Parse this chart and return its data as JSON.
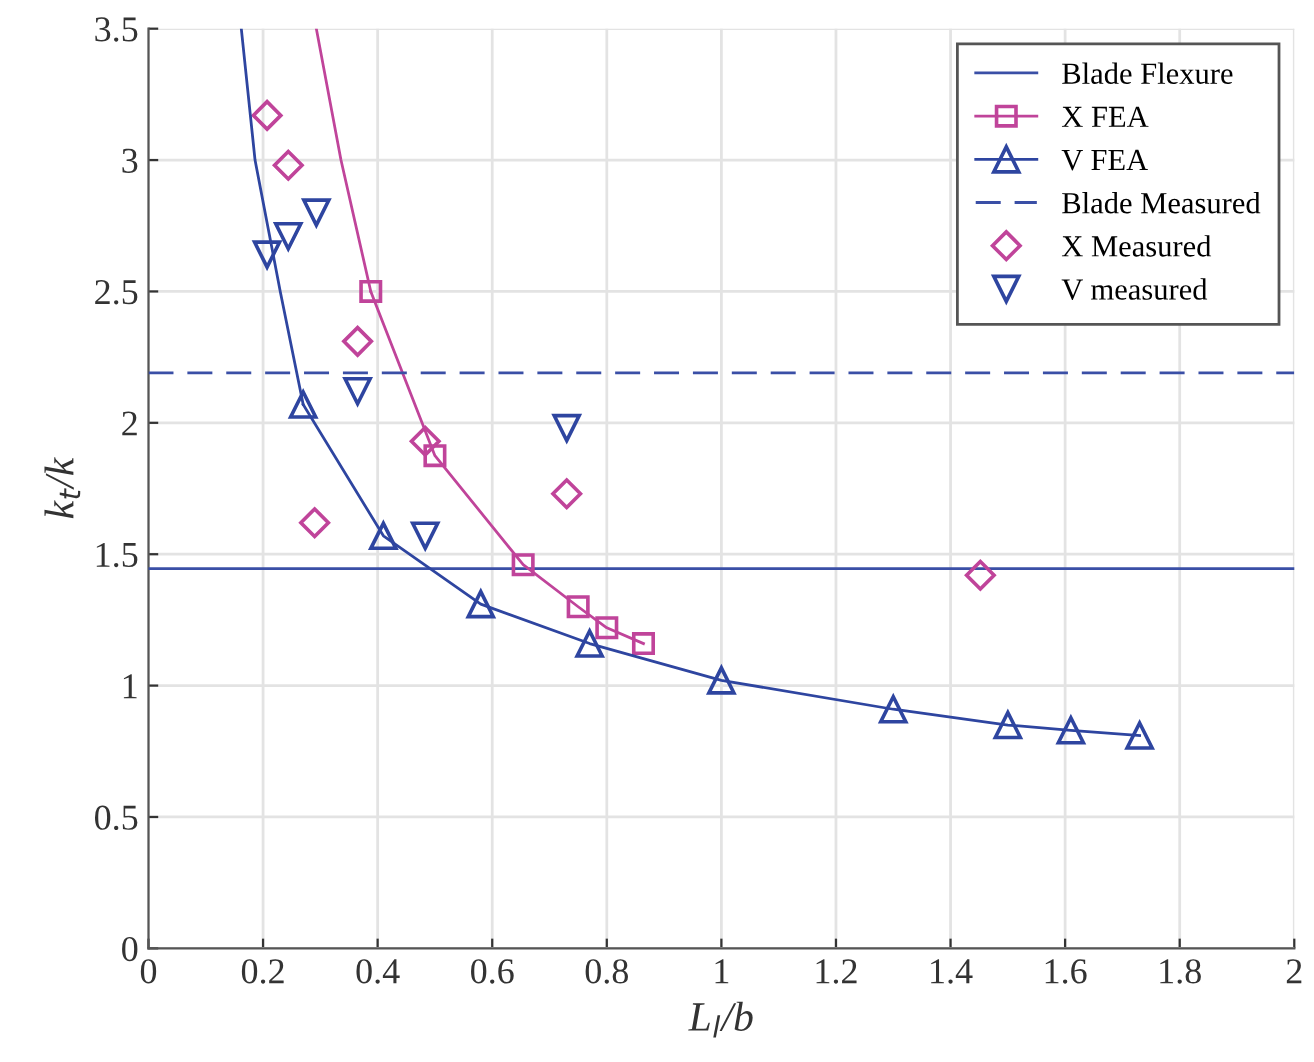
{
  "chart_data": {
    "type": "line",
    "xlabel": "L$_{l}$/b",
    "ylabel": "k$_{t}$/k",
    "xlim": [
      0,
      2
    ],
    "ylim": [
      0,
      3.5
    ],
    "xticks": [
      0,
      0.2,
      0.4,
      0.6,
      0.8,
      1,
      1.2,
      1.4,
      1.6,
      1.8,
      2
    ],
    "yticks": [
      0,
      0.5,
      1,
      1.5,
      2,
      2.5,
      3,
      3.5
    ],
    "grid": true,
    "legend": "top right",
    "series": [
      {
        "name": "Blade Flexure",
        "color": "#3a4fa6",
        "line_style": "solid",
        "marker": "none",
        "x": [
          0,
          2
        ],
        "values": [
          1.445,
          1.445
        ]
      },
      {
        "name": "X FEA",
        "color": "#c0449a",
        "line_style": "solid",
        "marker": "square",
        "x": [
          0.388,
          0.5,
          0.654,
          0.75,
          0.8,
          0.864
        ],
        "values": [
          2.5,
          1.875,
          1.46,
          1.3,
          1.22,
          1.16
        ]
      },
      {
        "name": "V FEA",
        "color": "#2e45a0",
        "line_style": "solid",
        "marker": "triangle",
        "x": [
          0.27,
          0.41,
          0.58,
          0.77,
          1.0,
          1.3,
          1.5,
          1.61,
          1.73
        ],
        "values": [
          2.07,
          1.57,
          1.31,
          1.16,
          1.02,
          0.91,
          0.85,
          0.83,
          0.81
        ]
      },
      {
        "name": "Blade Measured",
        "color": "#3a4fa6",
        "line_style": "dashed",
        "marker": "none",
        "x": [
          0,
          2
        ],
        "values": [
          2.19,
          2.19
        ]
      },
      {
        "name": "X Measured",
        "type": "scatter",
        "color": "#c0449a",
        "marker": "diamond",
        "x": [
          0.207,
          0.244,
          0.29,
          0.365,
          0.483,
          0.73,
          1.452
        ],
        "values": [
          3.17,
          2.98,
          1.62,
          2.31,
          1.93,
          1.73,
          1.42
        ]
      },
      {
        "name": "V measured",
        "type": "scatter",
        "color": "#2e45a0",
        "marker": "triangle_down",
        "x": [
          0.207,
          0.244,
          0.293,
          0.365,
          0.483,
          0.73
        ],
        "values": [
          2.64,
          2.71,
          2.8,
          2.12,
          1.57,
          1.98
        ]
      },
      {
        "color": "#c0449a",
        "line_style": "solid",
        "marker": "none",
        "x": [
          0.293,
          0.336,
          0.388
        ],
        "values": [
          3.5,
          3.0,
          2.5
        ]
      },
      {
        "color": "#2e45a0",
        "line_style": "solid",
        "marker": "none",
        "x": [
          0.162,
          0.186,
          0.23,
          0.27
        ],
        "values": [
          3.5,
          3.0,
          2.5,
          2.07
        ]
      }
    ]
  }
}
